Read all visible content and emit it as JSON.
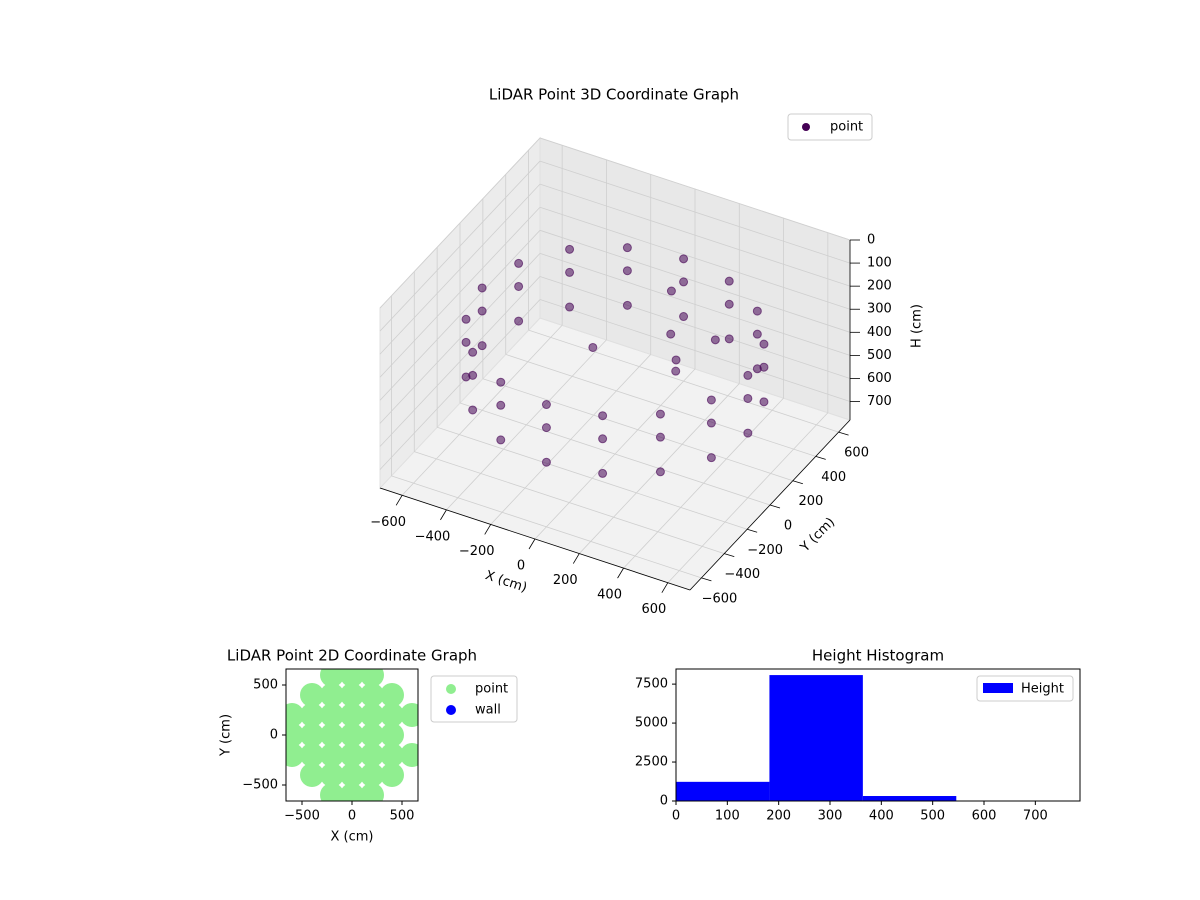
{
  "chart_data": [
    {
      "type": "scatter3d",
      "title": "LiDAR Point 3D Coordinate Graph",
      "xlabel": "X (cm)",
      "ylabel": "Y (cm)",
      "zlabel": "H (cm)",
      "xlim": [
        -700,
        700
      ],
      "ylim": [
        -700,
        700
      ],
      "zlim": [
        0,
        780
      ],
      "z_inverted": true,
      "xticks": [
        {
          "value": -600,
          "label": "−600"
        },
        {
          "value": -400,
          "label": "−400"
        },
        {
          "value": -200,
          "label": "−200"
        },
        0,
        200,
        400,
        600
      ],
      "yticks": [
        {
          "value": -600,
          "label": "−600"
        },
        {
          "value": -400,
          "label": "−400"
        },
        {
          "value": -200,
          "label": "−200"
        },
        0,
        200,
        400,
        600
      ],
      "zticks": [
        0,
        100,
        200,
        300,
        400,
        500,
        600,
        700
      ],
      "legend": "upper right",
      "series": [
        {
          "name": "point",
          "color": "#440154",
          "x": [
            600,
            554,
            424,
            230,
            0,
            -230,
            -424,
            -554,
            -600,
            -554,
            -424,
            -230,
            0,
            230,
            424,
            554,
            600,
            554,
            424,
            230,
            0,
            -230,
            -424,
            -554,
            -600,
            -554,
            -424,
            -230,
            0,
            230,
            424,
            554,
            600,
            554,
            424,
            230,
            0,
            -230,
            -424,
            -554,
            -600,
            -554,
            -424,
            -230,
            0,
            230,
            424,
            554,
            200,
            300,
            100,
            -100,
            350,
            250
          ],
          "y": [
            0,
            230,
            424,
            554,
            600,
            554,
            424,
            230,
            0,
            -230,
            -424,
            -554,
            -600,
            -554,
            -424,
            -230,
            0,
            230,
            424,
            554,
            600,
            554,
            424,
            230,
            0,
            -230,
            -424,
            -554,
            -600,
            -554,
            -424,
            -230,
            0,
            230,
            424,
            554,
            600,
            554,
            424,
            230,
            0,
            -230,
            -424,
            -554,
            -600,
            -554,
            -424,
            -230,
            100,
            -50,
            300,
            0,
            200,
            50
          ],
          "z": [
            250,
            250,
            250,
            250,
            250,
            250,
            250,
            250,
            250,
            250,
            250,
            250,
            250,
            250,
            250,
            250,
            350,
            350,
            350,
            350,
            350,
            350,
            350,
            350,
            350,
            350,
            350,
            350,
            350,
            350,
            350,
            350,
            500,
            500,
            500,
            500,
            500,
            500,
            500,
            500,
            500,
            500,
            500,
            500,
            500,
            500,
            500,
            500,
            250,
            300,
            200,
            350,
            280,
            320
          ]
        }
      ]
    },
    {
      "type": "scatter",
      "title": "LiDAR Point 2D Coordinate Graph",
      "xlabel": "X (cm)",
      "ylabel": "Y (cm)",
      "xlim": [
        -660,
        660
      ],
      "ylim": [
        -660,
        660
      ],
      "xticks": [
        {
          "value": -500,
          "label": "−500"
        },
        0,
        500
      ],
      "yticks": [
        {
          "value": -500,
          "label": "−500"
        },
        0,
        500
      ],
      "legend": "outside right",
      "series": [
        {
          "name": "point",
          "color": "#90ee90",
          "x": [
            -600,
            -600,
            -600,
            -400,
            -400,
            -400,
            -400,
            -400,
            -200,
            -200,
            -200,
            -200,
            -200,
            -200,
            -200,
            0,
            0,
            0,
            0,
            0,
            0,
            0,
            200,
            200,
            200,
            200,
            200,
            200,
            200,
            400,
            400,
            400,
            400,
            400,
            600,
            600
          ],
          "y": [
            -200,
            0,
            200,
            -400,
            -200,
            0,
            200,
            400,
            -600,
            -400,
            -200,
            0,
            200,
            400,
            600,
            -600,
            -400,
            -200,
            0,
            200,
            400,
            600,
            -600,
            -400,
            -200,
            0,
            200,
            400,
            600,
            -400,
            -200,
            0,
            200,
            400,
            -200,
            200
          ]
        },
        {
          "name": "wall",
          "color": "#0000ff",
          "x": [],
          "y": []
        }
      ]
    },
    {
      "type": "histogram",
      "title": "Height Histogram",
      "xlim": [
        0,
        787
      ],
      "ylim": [
        0,
        8470
      ],
      "xticks": [
        0,
        100,
        200,
        300,
        400,
        500,
        600,
        700
      ],
      "yticks": [
        0,
        2500,
        5000,
        7500
      ],
      "legend": "upper right",
      "bins": [
        0,
        182,
        364,
        546,
        728
      ],
      "series": [
        {
          "name": "Height",
          "color": "#0000ff",
          "values": [
            1230,
            8080,
            320,
            10
          ]
        }
      ]
    }
  ]
}
